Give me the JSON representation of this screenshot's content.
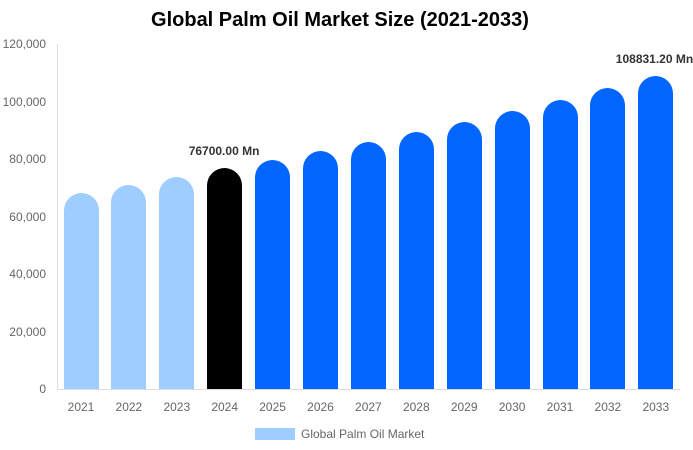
{
  "chart_data": {
    "type": "bar",
    "title": "Global Palm Oil Market Size (2021-2033)",
    "xlabel": "",
    "ylabel": "",
    "ylim": [
      0,
      120000
    ],
    "yticks": [
      "0",
      "20,000",
      "40,000",
      "60,000",
      "80,000",
      "100,000",
      "120,000"
    ],
    "grid": false,
    "legend_position": "bottom",
    "categories": [
      "2021",
      "2022",
      "2023",
      "2024",
      "2025",
      "2026",
      "2027",
      "2028",
      "2029",
      "2030",
      "2031",
      "2032",
      "2033"
    ],
    "series": [
      {
        "name": "Global Palm Oil Market",
        "values": [
          68200,
          71000,
          73700,
          76700,
          79700,
          82800,
          86000,
          89400,
          92900,
          96600,
          100500,
          104600,
          108831.2
        ],
        "colors": [
          "#9fcdff",
          "#9fcdff",
          "#9fcdff",
          "#000000",
          "#0066ff",
          "#0066ff",
          "#0066ff",
          "#0066ff",
          "#0066ff",
          "#0066ff",
          "#0066ff",
          "#0066ff",
          "#0066ff"
        ]
      }
    ],
    "annotations": [
      {
        "category": "2024",
        "text": "76700.00 Mn"
      },
      {
        "category": "2033",
        "text": "108831.20 Mn"
      }
    ]
  },
  "legend": {
    "label": "Global Palm Oil Market",
    "color": "#9fcdff"
  }
}
